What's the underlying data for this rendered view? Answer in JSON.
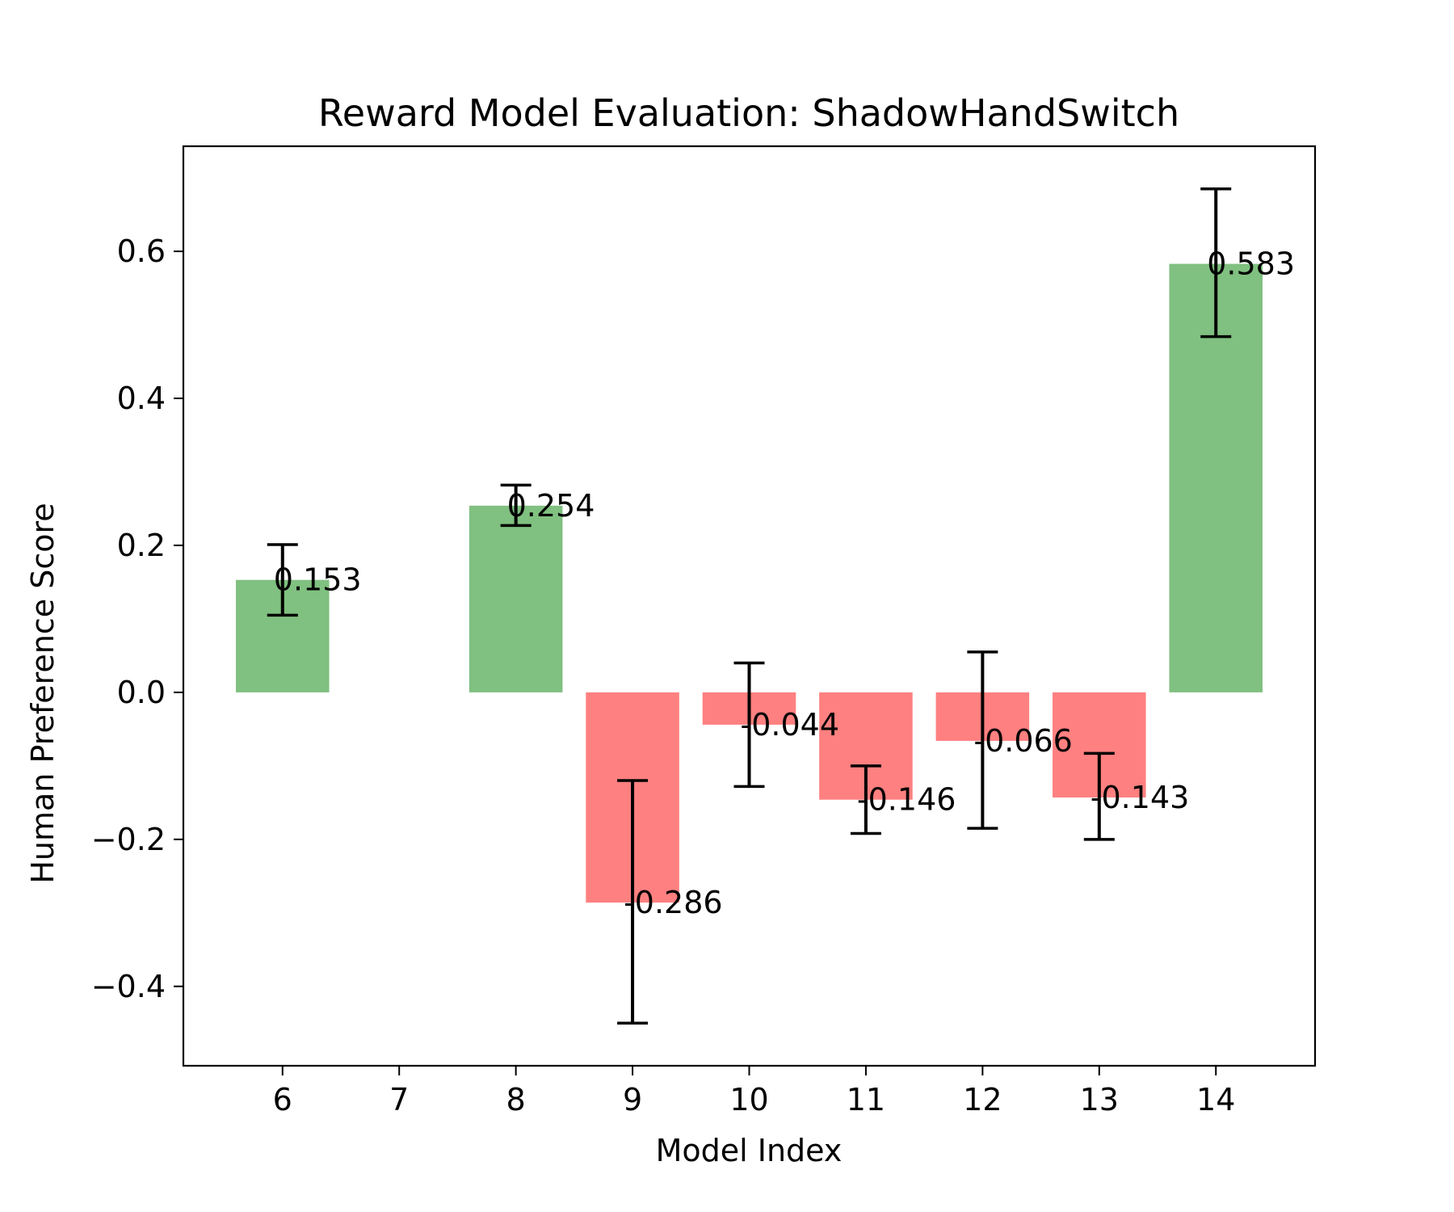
{
  "chart_data": {
    "type": "bar",
    "title": "Reward Model Evaluation: ShadowHandSwitch",
    "xlabel": "Model Index",
    "ylabel": "Human Preference Score",
    "x": [
      6,
      8,
      9,
      10,
      11,
      12,
      13,
      14
    ],
    "values": [
      0.153,
      0.254,
      -0.286,
      -0.044,
      -0.146,
      -0.066,
      -0.143,
      0.583
    ],
    "value_labels": [
      "0.153",
      "0.254",
      "-0.286",
      "-0.044",
      "-0.146",
      "-0.066",
      "-0.143",
      "0.583"
    ],
    "error_low": [
      0.105,
      0.227,
      -0.45,
      -0.128,
      -0.192,
      -0.185,
      -0.2,
      0.484
    ],
    "error_high": [
      0.201,
      0.282,
      -0.12,
      0.04,
      -0.1,
      0.055,
      -0.083,
      0.685
    ],
    "xticks": [
      "6",
      "7",
      "8",
      "9",
      "10",
      "11",
      "12",
      "13",
      "14"
    ],
    "yticks": [
      "−0.4",
      "−0.2",
      "0.0",
      "0.2",
      "0.4",
      "0.6"
    ],
    "ytick_values": [
      -0.4,
      -0.2,
      0.0,
      0.2,
      0.4,
      0.6
    ],
    "xlim": [
      5.15,
      14.85
    ],
    "ylim": [
      -0.508,
      0.743
    ],
    "positive_color": "#80c080",
    "negative_color": "#ff8080",
    "error_color": "#000000",
    "grid": false
  }
}
